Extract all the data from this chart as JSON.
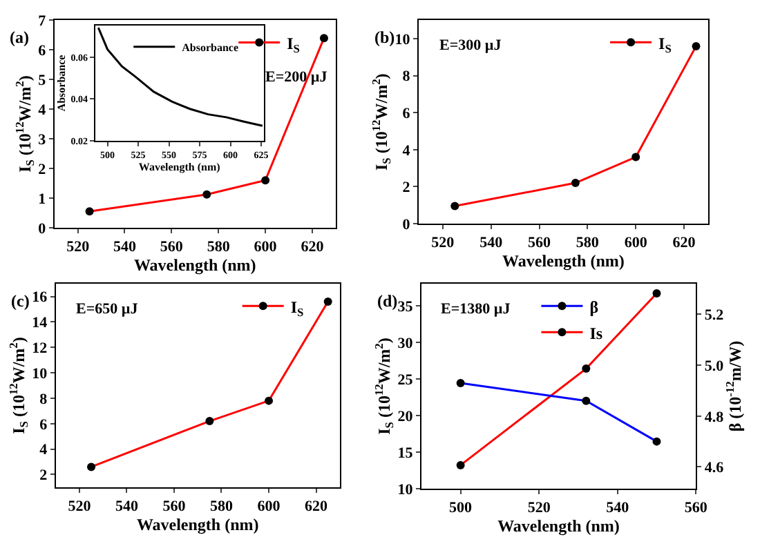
{
  "chart_data": [
    {
      "type": "line",
      "xlabel": "Wavelength (nm)",
      "ylabel": "I$_{S}$ (10$^{12}$W/m$^{2}$)",
      "annotations": [
        "(a)",
        "E=200 µJ"
      ],
      "x": [
        525,
        575,
        600,
        625
      ],
      "series": [
        {
          "name": "I$_{S}$",
          "color": "#ff0000",
          "values": [
            0.55,
            1.12,
            1.6,
            6.4
          ]
        }
      ],
      "xlim": [
        510,
        630
      ],
      "xticks": [
        520,
        540,
        560,
        580,
        600,
        620
      ],
      "ylim": [
        0,
        7
      ],
      "yticks": [
        0,
        1,
        2,
        3,
        4,
        5,
        6,
        7
      ],
      "legend": "top right",
      "marker": "circle",
      "line_style": "solid"
    },
    {
      "type": "line",
      "xlabel": "Wavelength (nm)",
      "ylabel": "Absorbance",
      "x": [
        492.6,
        500,
        511.8,
        522.9,
        537.6,
        552.4,
        567,
        581.8,
        596.6,
        611,
        626
      ],
      "series": [
        {
          "name": "Absorbance",
          "color": "#000000",
          "values": [
            0.074,
            0.0637,
            0.0555,
            0.0505,
            0.0434,
            0.0387,
            0.0352,
            0.0326,
            0.0312,
            0.0291,
            0.0271
          ]
        }
      ],
      "xlim": [
        490,
        627
      ],
      "xticks": [
        500,
        525,
        550,
        575,
        600,
        625
      ],
      "ylim": [
        0.02,
        0.075
      ],
      "yticks": [
        0.02,
        0.04,
        0.06
      ],
      "legend": "top right",
      "marker": "none",
      "line_style": "solid"
    },
    {
      "type": "line",
      "xlabel": "Wavelength (nm)",
      "ylabel": "I$_{S}$ (10$^{12}$W/m$^{2}$)",
      "annotations": [
        "(b)",
        "E=300 µJ"
      ],
      "x": [
        525,
        575,
        600,
        625
      ],
      "series": [
        {
          "name": "I$_{S}$",
          "color": "#ff0000",
          "values": [
            0.95,
            2.2,
            3.6,
            9.6
          ]
        }
      ],
      "xlim": [
        510,
        630
      ],
      "xticks": [
        520,
        540,
        560,
        580,
        600,
        620
      ],
      "ylim": [
        0,
        11
      ],
      "yticks": [
        0,
        2,
        4,
        6,
        8,
        10
      ],
      "legend": "top right",
      "marker": "circle",
      "line_style": "solid"
    },
    {
      "type": "line",
      "xlabel": "Wavelength (nm)",
      "ylabel": "I$_{S}$ (10$^{12}$W/m$^{2}$)",
      "annotations": [
        "(c)",
        "E=650 µJ"
      ],
      "x": [
        525,
        575,
        600,
        625
      ],
      "series": [
        {
          "name": "I$_{S}$",
          "color": "#ff0000",
          "values": [
            2.6,
            6.2,
            7.8,
            15.6
          ]
        }
      ],
      "xlim": [
        510,
        630
      ],
      "xticks": [
        520,
        540,
        560,
        580,
        600,
        620
      ],
      "ylim": [
        1,
        17
      ],
      "yticks": [
        2,
        4,
        6,
        8,
        10,
        12,
        14,
        16
      ],
      "legend": "top right",
      "marker": "circle",
      "line_style": "solid"
    },
    {
      "type": "line",
      "xlabel": "Wavelength (nm)",
      "ylabel": "I$_{S}$ (10$^{12}$W/m$^{2}$)",
      "y2label": "β (10$^{-12}$m/W)",
      "annotations": [
        "(d)",
        "E=1380 µJ"
      ],
      "x": [
        500,
        532,
        550
      ],
      "series": [
        {
          "name": "β",
          "color": "#0000ff",
          "axis": "y2",
          "values": [
            4.93,
            4.86,
            4.7
          ]
        },
        {
          "name": "Is",
          "color": "#ff0000",
          "values": [
            13.2,
            26.4,
            36.7
          ]
        }
      ],
      "xlim": [
        490,
        560
      ],
      "xticks": [
        500,
        520,
        540,
        560
      ],
      "ylim": [
        10,
        38
      ],
      "yticks": [
        10,
        15,
        20,
        25,
        30,
        35
      ],
      "y2lim": [
        4.515,
        5.32
      ],
      "y2ticks": [
        4.6,
        4.8,
        {
          "value": 5.0,
          "label": "5.0"
        },
        5.2
      ],
      "legend": "top",
      "marker": "circle",
      "line_style": "solid"
    }
  ]
}
